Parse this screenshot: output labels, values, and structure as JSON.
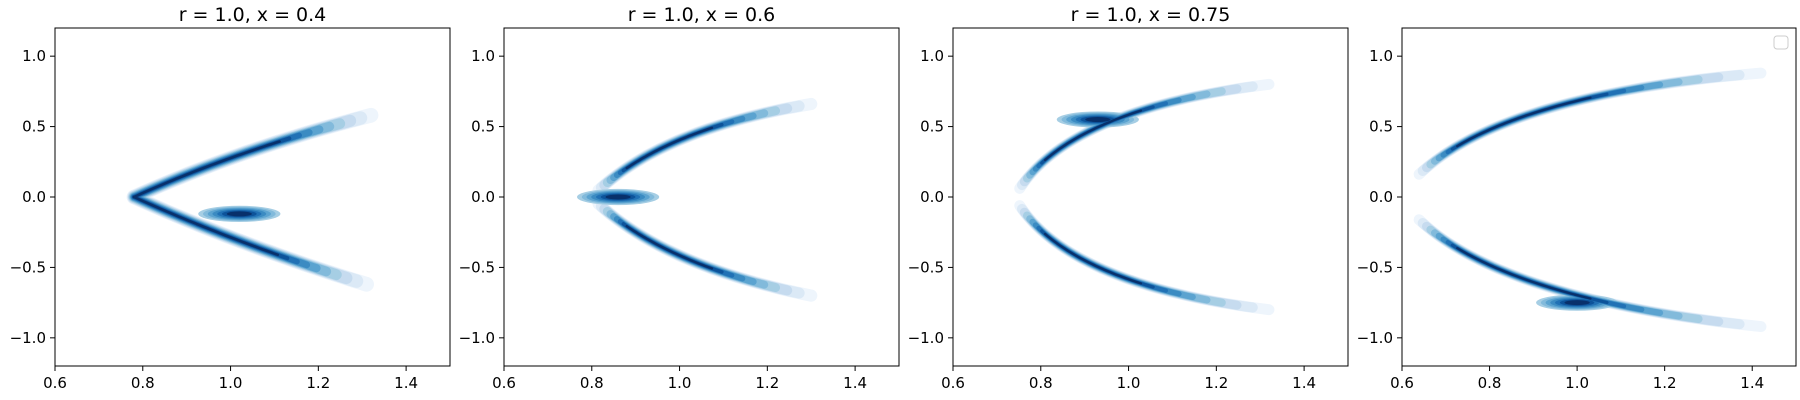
{
  "chart_data": [
    {
      "type": "contour",
      "title": "r = 1.0, x = 0.4",
      "xlim": [
        0.6,
        1.5
      ],
      "ylim": [
        -1.2,
        1.2
      ],
      "xticks": [
        "0.6",
        "0.8",
        "1.0",
        "1.2",
        "1.4"
      ],
      "yticks": [
        "−1.0",
        "−0.5",
        "0.0",
        "0.5",
        "1.0"
      ],
      "xtick_values": [
        0.6,
        0.8,
        1.0,
        1.2,
        1.4
      ],
      "ytick_values": [
        -1.0,
        -0.5,
        0.0,
        0.5,
        1.0
      ],
      "colormap": "Blues",
      "density_center": [
        1.02,
        -0.12
      ],
      "arms": [
        {
          "name": "upper",
          "from": [
            0.82,
            0.05
          ],
          "to": [
            1.28,
            0.55
          ],
          "width": 0.2
        },
        {
          "name": "lower",
          "from": [
            0.82,
            -0.05
          ],
          "to": [
            1.25,
            -0.55
          ],
          "width": 0.2
        }
      ],
      "legend": false
    },
    {
      "type": "contour",
      "title": "r = 1.0, x = 0.6",
      "xlim": [
        0.6,
        1.5
      ],
      "ylim": [
        -1.2,
        1.2
      ],
      "xticks": [
        "0.6",
        "0.8",
        "1.0",
        "1.2",
        "1.4"
      ],
      "yticks": [
        "−1.0",
        "−0.5",
        "0.0",
        "0.5",
        "1.0"
      ],
      "xtick_values": [
        0.6,
        0.8,
        1.0,
        1.2,
        1.4
      ],
      "ytick_values": [
        -1.0,
        -0.5,
        0.0,
        0.5,
        1.0
      ],
      "colormap": "Blues",
      "density_center": [
        0.86,
        0.02
      ],
      "arms": [
        {
          "name": "upper",
          "from": [
            0.82,
            0.1
          ],
          "to": [
            1.25,
            0.6
          ],
          "width": 0.16
        },
        {
          "name": "lower",
          "from": [
            0.82,
            -0.1
          ],
          "to": [
            1.25,
            -0.6
          ],
          "width": 0.16
        }
      ],
      "legend": false
    },
    {
      "type": "contour",
      "title": "r = 1.0, x = 0.75",
      "xlim": [
        0.6,
        1.5
      ],
      "ylim": [
        -1.2,
        1.2
      ],
      "xticks": [
        "0.6",
        "0.8",
        "1.0",
        "1.2",
        "1.4"
      ],
      "yticks": [
        "−1.0",
        "−0.5",
        "0.0",
        "0.5",
        "1.0"
      ],
      "xtick_values": [
        0.6,
        0.8,
        1.0,
        1.2,
        1.4
      ],
      "ytick_values": [
        -1.0,
        -0.5,
        0.0,
        0.5,
        1.0
      ],
      "colormap": "Blues",
      "density_center": [
        0.93,
        0.55
      ],
      "arms": [
        {
          "name": "upper",
          "from": [
            0.8,
            0.4
          ],
          "to": [
            1.25,
            0.75
          ],
          "width": 0.13
        },
        {
          "name": "lower",
          "from": [
            0.8,
            -0.45
          ],
          "to": [
            1.25,
            -0.75
          ],
          "width": 0.13
        }
      ],
      "legend": false
    },
    {
      "type": "contour",
      "title": "",
      "xlim": [
        0.6,
        1.5
      ],
      "ylim": [
        -1.2,
        1.2
      ],
      "xticks": [
        "0.6",
        "0.8",
        "1.0",
        "1.2",
        "1.4"
      ],
      "yticks": [
        "−1.0",
        "−0.5",
        "0.0",
        "0.5",
        "1.0"
      ],
      "xtick_values": [
        0.6,
        0.8,
        1.0,
        1.2,
        1.4
      ],
      "ytick_values": [
        -1.0,
        -0.5,
        0.0,
        0.5,
        1.0
      ],
      "colormap": "Blues",
      "density_center": [
        1.0,
        -0.75
      ],
      "arms": [
        {
          "name": "upper",
          "from": [
            0.85,
            0.6
          ],
          "to": [
            1.3,
            0.85
          ],
          "width": 0.12
        },
        {
          "name": "lower",
          "from": [
            0.85,
            -0.65
          ],
          "to": [
            1.35,
            -0.9
          ],
          "width": 0.12
        }
      ],
      "legend": true,
      "legend_position": "top-right",
      "legend_entries": []
    }
  ]
}
